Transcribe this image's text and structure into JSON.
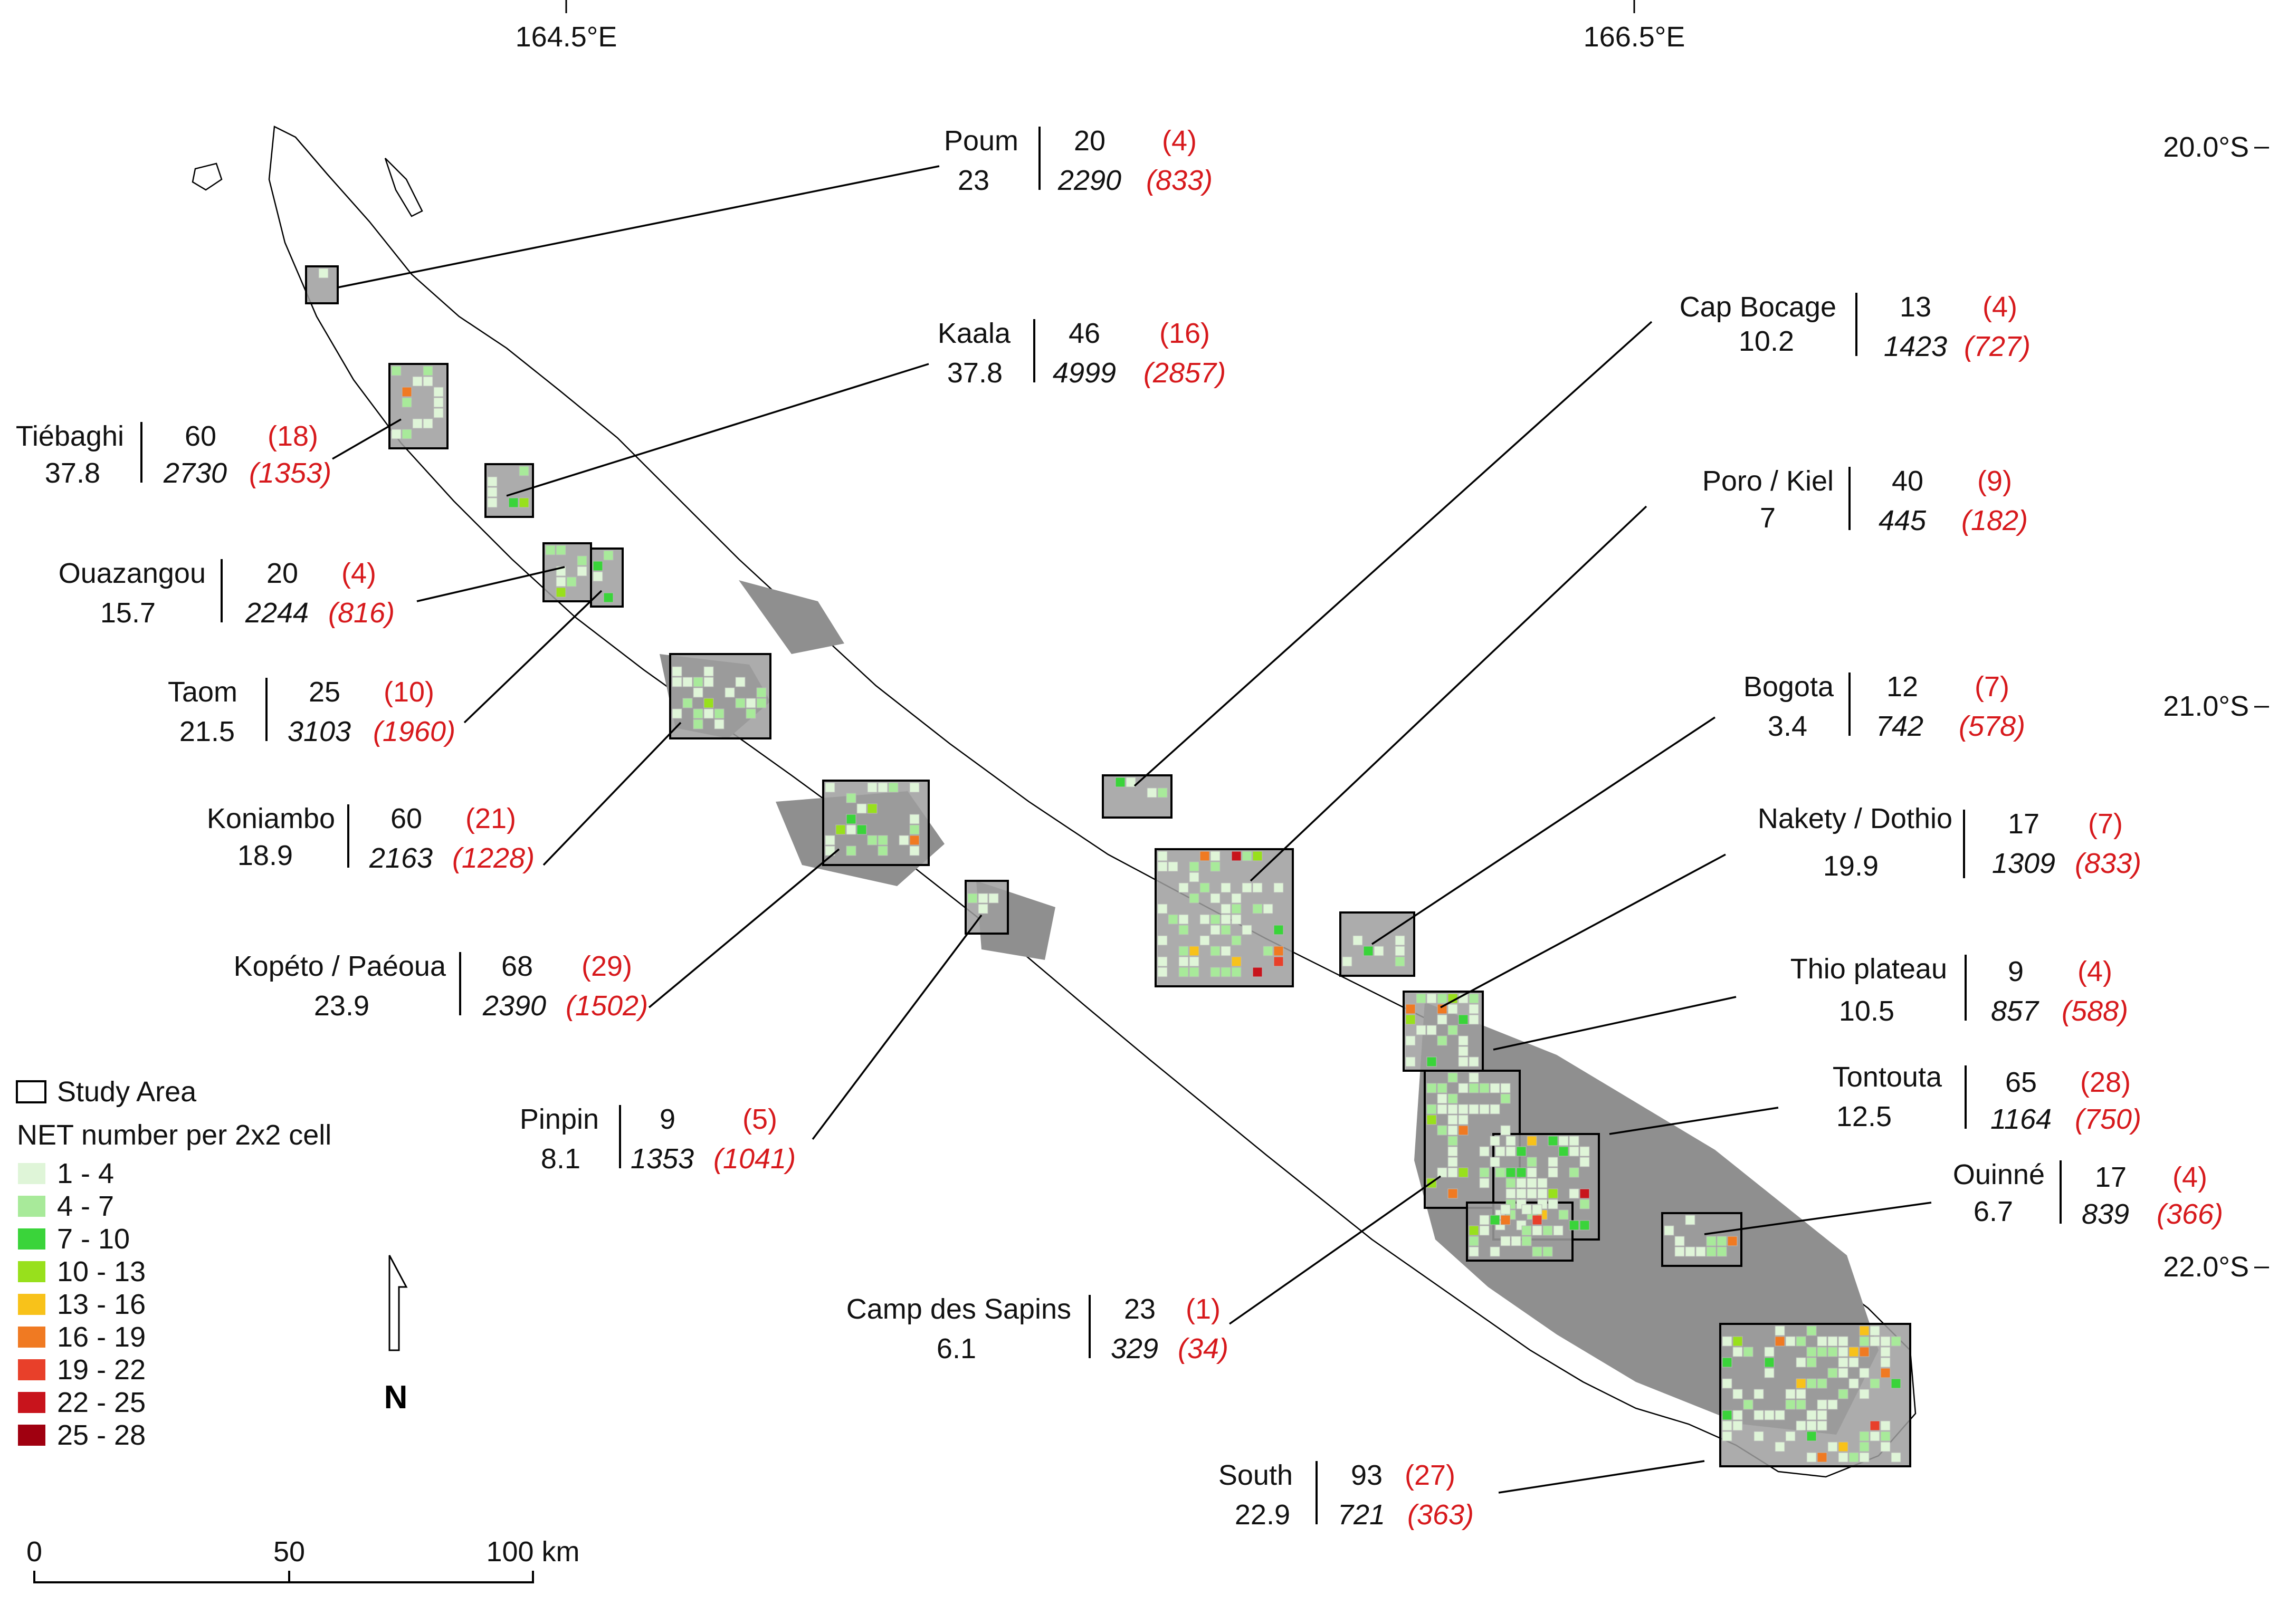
{
  "axes": {
    "lon_labels": [
      "164.5°E",
      "166.5°E"
    ],
    "lat_labels": [
      "20.0°S",
      "21.0°S",
      "22.0°S"
    ]
  },
  "legend": {
    "study_area_label": "Study Area",
    "title": "NET number per 2x2 cell",
    "classes": [
      {
        "label": "1 - 4",
        "color": "#dff5d8"
      },
      {
        "label": "4 - 7",
        "color": "#a8ea9a"
      },
      {
        "label": "7 - 10",
        "color": "#3ad43a"
      },
      {
        "label": "10 - 13",
        "color": "#98e01c"
      },
      {
        "label": "13 - 16",
        "color": "#f8c21a"
      },
      {
        "label": "16 - 19",
        "color": "#f07a22"
      },
      {
        "label": "19 - 22",
        "color": "#e8402a"
      },
      {
        "label": "22 - 25",
        "color": "#c8141c"
      },
      {
        "label": "25 - 28",
        "color": "#a00010"
      }
    ]
  },
  "north_arrow_label": "N",
  "scale_bar": {
    "labels": [
      "0",
      "50",
      "100 km"
    ]
  },
  "sites": [
    {
      "name": "Poum",
      "value": "23",
      "net_count": "20",
      "net_count_red": "(4)",
      "cells": "2290",
      "cells_red": "(833)"
    },
    {
      "name": "Kaala",
      "value": "37.8",
      "net_count": "46",
      "net_count_red": "(16)",
      "cells": "4999",
      "cells_red": "(2857)"
    },
    {
      "name": "Tiébaghi",
      "value": "37.8",
      "net_count": "60",
      "net_count_red": "(18)",
      "cells": "2730",
      "cells_red": "(1353)"
    },
    {
      "name": "Ouazangou",
      "value": "15.7",
      "net_count": "20",
      "net_count_red": "(4)",
      "cells": "2244",
      "cells_red": "(816)"
    },
    {
      "name": "Taom",
      "value": "21.5",
      "net_count": "25",
      "net_count_red": "(10)",
      "cells": "3103",
      "cells_red": "(1960)"
    },
    {
      "name": "Koniambo",
      "value": "18.9",
      "net_count": "60",
      "net_count_red": "(21)",
      "cells": "2163",
      "cells_red": "(1228)"
    },
    {
      "name": "Kopéto / Paéoua",
      "value": "23.9",
      "net_count": "68",
      "net_count_red": "(29)",
      "cells": "2390",
      "cells_red": "(1502)"
    },
    {
      "name": "Pinpin",
      "value": "8.1",
      "net_count": "9",
      "net_count_red": "(5)",
      "cells": "1353",
      "cells_red": "(1041)"
    },
    {
      "name": "Camp des Sapins",
      "value": "6.1",
      "net_count": "23",
      "net_count_red": "(1)",
      "cells": "329",
      "cells_red": "(34)"
    },
    {
      "name": "South",
      "value": "22.9",
      "net_count": "93",
      "net_count_red": "(27)",
      "cells": "721",
      "cells_red": "(363)"
    },
    {
      "name": "Cap Bocage",
      "value": "10.2",
      "net_count": "13",
      "net_count_red": "(4)",
      "cells": "1423",
      "cells_red": "(727)"
    },
    {
      "name": "Poro / Kiel",
      "value": "7",
      "net_count": "40",
      "net_count_red": "(9)",
      "cells": "445",
      "cells_red": "(182)"
    },
    {
      "name": "Bogota",
      "value": "3.4",
      "net_count": "12",
      "net_count_red": "(7)",
      "cells": "742",
      "cells_red": "(578)"
    },
    {
      "name": "Nakety / Dothio",
      "value": "19.9",
      "net_count": "17",
      "net_count_red": "(7)",
      "cells": "1309",
      "cells_red": "(833)"
    },
    {
      "name": "Thio plateau",
      "value": "10.5",
      "net_count": "9",
      "net_count_red": "(4)",
      "cells": "857",
      "cells_red": "(588)"
    },
    {
      "name": "Tontouta",
      "value": "12.5",
      "net_count": "65",
      "net_count_red": "(28)",
      "cells": "1164",
      "cells_red": "(750)"
    },
    {
      "name": "Ouinné",
      "value": "6.7",
      "net_count": "17",
      "net_count_red": "(4)",
      "cells": "839",
      "cells_red": "(366)"
    }
  ]
}
